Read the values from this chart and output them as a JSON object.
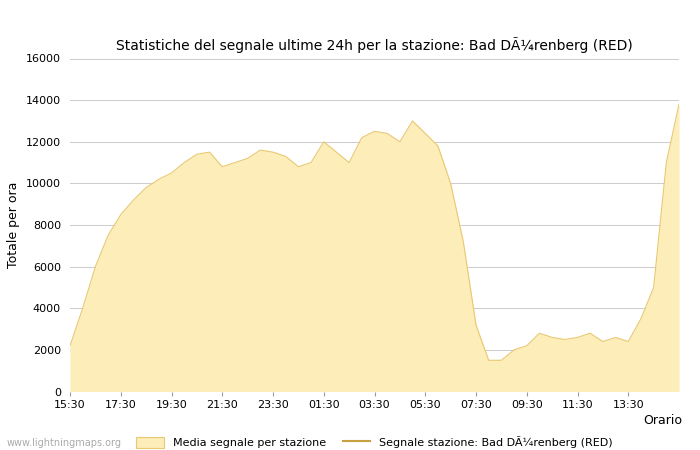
{
  "title": "Statistiche del segnale ultime 24h per la stazione: Bad DÃ¼renberg (RED)",
  "xlabel": "Orario",
  "ylabel": "Totale per ora",
  "ylim": [
    0,
    16000
  ],
  "yticks": [
    0,
    2000,
    4000,
    6000,
    8000,
    10000,
    12000,
    14000,
    16000
  ],
  "xtick_labels": [
    "15:30",
    "17:30",
    "19:30",
    "21:30",
    "23:30",
    "01:30",
    "03:30",
    "05:30",
    "07:30",
    "09:30",
    "11:30",
    "13:30"
  ],
  "fill_color": "#FDEDB9",
  "fill_edge_color": "#E8C870",
  "line_color": "#C8A040",
  "background_color": "#ffffff",
  "grid_color": "#cccccc",
  "legend_fill_label": "Media segnale per stazione",
  "legend_line_label": "Segnale stazione: Bad DÃ¼renberg (RED)",
  "watermark": "www.lightningmaps.org",
  "x_values": [
    0,
    0.5,
    1.0,
    1.5,
    2.0,
    2.5,
    3.0,
    3.5,
    4.0,
    4.5,
    5.0,
    5.5,
    6.0,
    6.5,
    7.0,
    7.5,
    8.0,
    8.5,
    9.0,
    9.5,
    10.0,
    10.5,
    11.0,
    11.5,
    12.0,
    12.5,
    13.0,
    13.5,
    14.0,
    14.5,
    15.0,
    15.5,
    16.0,
    16.5,
    17.0,
    17.5,
    18.0,
    18.5,
    19.0,
    19.5,
    20.0,
    20.5,
    21.0,
    21.5,
    22.0,
    22.5,
    23.0,
    23.5,
    24.0
  ],
  "y_values": [
    2200,
    4000,
    6000,
    7500,
    8500,
    9200,
    9800,
    10200,
    10500,
    11000,
    11400,
    11500,
    10800,
    11000,
    11200,
    11600,
    11500,
    11300,
    10800,
    11000,
    12000,
    11500,
    11000,
    12200,
    12500,
    12400,
    12000,
    13000,
    12400,
    11800,
    10000,
    7200,
    3200,
    1500,
    1500,
    2000,
    2200,
    2800,
    2600,
    2500,
    2600,
    2800,
    2400,
    2600,
    2400,
    3500,
    5000,
    11000,
    13800
  ]
}
